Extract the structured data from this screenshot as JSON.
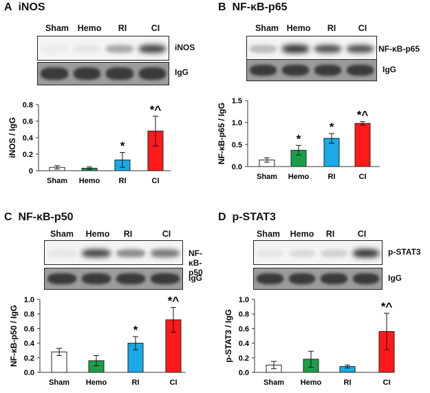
{
  "blot_labels": {
    "igg": "IgG"
  },
  "panels": [
    {
      "id": "A",
      "letter": "A",
      "title": "iNOS",
      "lanes": [
        "Sham",
        "Hemo",
        "RI",
        "CI"
      ],
      "target_label": "iNOS",
      "igg_label": "IgG",
      "bands": [
        0.02,
        0.05,
        0.35,
        0.85
      ]
    },
    {
      "id": "B",
      "letter": "B",
      "title": "NF-κB-p65",
      "lanes": [
        "Sham",
        "Hemo",
        "RI",
        "CI"
      ],
      "target_label": "NF-κB-p65",
      "igg_label": "IgG",
      "bands": [
        0.25,
        0.95,
        0.75,
        0.75
      ]
    },
    {
      "id": "C",
      "letter": "C",
      "title": "NF-κB-p50",
      "lanes": [
        "Sham",
        "Hemo",
        "RI",
        "CI"
      ],
      "target_label": "NF-κB-p50",
      "igg_label": "IgG",
      "bands": [
        0.05,
        0.85,
        0.5,
        0.6
      ]
    },
    {
      "id": "D",
      "letter": "D",
      "title": "p-STAT3",
      "lanes": [
        "Sham",
        "Hemo",
        "RI",
        "CI"
      ],
      "target_label": "p-STAT3",
      "igg_label": "IgG",
      "bands": [
        0.05,
        0.1,
        0.15,
        0.95
      ]
    }
  ],
  "colors": {
    "Sham": "#ffffff",
    "Hemo": "#1a9e4a",
    "RI": "#1aaae8",
    "CI": "#ff1a1a"
  },
  "chart_data": [
    {
      "id": "A",
      "type": "bar",
      "categories": [
        "Sham",
        "Hemo",
        "RI",
        "CI"
      ],
      "values": [
        0.04,
        0.03,
        0.13,
        0.48
      ],
      "errors": [
        0.02,
        0.015,
        0.09,
        0.18
      ],
      "annotations": [
        "",
        "",
        "*",
        "*^"
      ],
      "ylabel": "iNOS / IgG",
      "ylim": [
        0,
        0.8
      ],
      "yticks": [
        0,
        0.2,
        0.4,
        0.6,
        0.8
      ],
      "ytick_labels": [
        "0",
        "0.2",
        "0.4",
        "0.6",
        "0.8"
      ]
    },
    {
      "id": "B",
      "type": "bar",
      "categories": [
        "Sham",
        "Hemo",
        "RI",
        "CI"
      ],
      "values": [
        0.15,
        0.37,
        0.64,
        0.98
      ],
      "errors": [
        0.05,
        0.11,
        0.11,
        0.04
      ],
      "annotations": [
        "",
        "*",
        "*",
        "*^"
      ],
      "ylabel": "NF-κB-p65 / IgG",
      "ylim": [
        0,
        1.5
      ],
      "yticks": [
        0,
        0.5,
        1.0,
        1.5
      ],
      "ytick_labels": [
        "0.0",
        "0.5",
        "1.0",
        "1.5"
      ]
    },
    {
      "id": "C",
      "type": "bar",
      "categories": [
        "Sham",
        "Hemo",
        "RI",
        "CI"
      ],
      "values": [
        0.28,
        0.16,
        0.4,
        0.72
      ],
      "errors": [
        0.05,
        0.07,
        0.09,
        0.17
      ],
      "annotations": [
        "",
        "",
        "*",
        "*^"
      ],
      "ylabel": "NF-κB-p50 / IgG",
      "ylim": [
        0,
        1.0
      ],
      "yticks": [
        0,
        0.2,
        0.4,
        0.6,
        0.8,
        1.0
      ],
      "ytick_labels": [
        "0.0",
        "0.2",
        "0.4",
        "0.6",
        "0.8",
        "1.0"
      ]
    },
    {
      "id": "D",
      "type": "bar",
      "categories": [
        "Sham",
        "Hemo",
        "RI",
        "CI"
      ],
      "values": [
        0.1,
        0.18,
        0.08,
        0.56
      ],
      "errors": [
        0.05,
        0.11,
        0.02,
        0.25
      ],
      "annotations": [
        "",
        "",
        "",
        "*^"
      ],
      "ylabel": "p-STAT3 / IgG",
      "ylim": [
        0,
        1.0
      ],
      "yticks": [
        0,
        0.2,
        0.4,
        0.6,
        0.8,
        1.0
      ],
      "ytick_labels": [
        "0.0",
        "0.2",
        "0.4",
        "0.6",
        "0.8",
        "1.0"
      ]
    }
  ]
}
